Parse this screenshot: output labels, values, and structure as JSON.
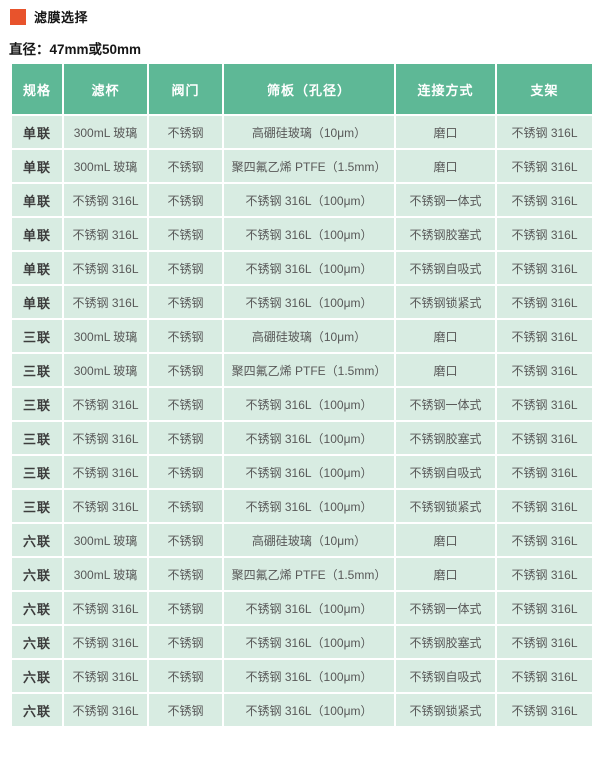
{
  "doc": {
    "title": "滤膜选择",
    "subtitle": "直径：47mm或50mm"
  },
  "colors": {
    "accent": "#e8532c",
    "header_bg": "#5eb896",
    "cell_bg": "#d8ece2"
  },
  "table": {
    "headers": [
      "规格",
      "滤杯",
      "阀门",
      "筛板（孔径）",
      "连接方式",
      "支架"
    ],
    "rows": [
      [
        "单联",
        "300mL 玻璃",
        "不锈钢",
        "高硼硅玻璃（10μm）",
        "磨口",
        "不锈钢 316L"
      ],
      [
        "单联",
        "300mL 玻璃",
        "不锈钢",
        "聚四氟乙烯 PTFE（1.5mm）",
        "磨口",
        "不锈钢 316L"
      ],
      [
        "单联",
        "不锈钢 316L",
        "不锈钢",
        "不锈钢 316L（100μm）",
        "不锈钢一体式",
        "不锈钢 316L"
      ],
      [
        "单联",
        "不锈钢 316L",
        "不锈钢",
        "不锈钢 316L（100μm）",
        "不锈钢胶塞式",
        "不锈钢 316L"
      ],
      [
        "单联",
        "不锈钢 316L",
        "不锈钢",
        "不锈钢 316L（100μm）",
        "不锈钢自吸式",
        "不锈钢 316L"
      ],
      [
        "单联",
        "不锈钢 316L",
        "不锈钢",
        "不锈钢 316L（100μm）",
        "不锈钢锁紧式",
        "不锈钢 316L"
      ],
      [
        "三联",
        "300mL 玻璃",
        "不锈钢",
        "高硼硅玻璃（10μm）",
        "磨口",
        "不锈钢 316L"
      ],
      [
        "三联",
        "300mL 玻璃",
        "不锈钢",
        "聚四氟乙烯 PTFE（1.5mm）",
        "磨口",
        "不锈钢 316L"
      ],
      [
        "三联",
        "不锈钢 316L",
        "不锈钢",
        "不锈钢 316L（100μm）",
        "不锈钢一体式",
        "不锈钢 316L"
      ],
      [
        "三联",
        "不锈钢 316L",
        "不锈钢",
        "不锈钢 316L（100μm）",
        "不锈钢胶塞式",
        "不锈钢 316L"
      ],
      [
        "三联",
        "不锈钢 316L",
        "不锈钢",
        "不锈钢 316L（100μm）",
        "不锈钢自吸式",
        "不锈钢 316L"
      ],
      [
        "三联",
        "不锈钢 316L",
        "不锈钢",
        "不锈钢 316L（100μm）",
        "不锈钢锁紧式",
        "不锈钢 316L"
      ],
      [
        "六联",
        "300mL 玻璃",
        "不锈钢",
        "高硼硅玻璃（10μm）",
        "磨口",
        "不锈钢 316L"
      ],
      [
        "六联",
        "300mL 玻璃",
        "不锈钢",
        "聚四氟乙烯 PTFE（1.5mm）",
        "磨口",
        "不锈钢 316L"
      ],
      [
        "六联",
        "不锈钢 316L",
        "不锈钢",
        "不锈钢 316L（100μm）",
        "不锈钢一体式",
        "不锈钢 316L"
      ],
      [
        "六联",
        "不锈钢 316L",
        "不锈钢",
        "不锈钢 316L（100μm）",
        "不锈钢胶塞式",
        "不锈钢 316L"
      ],
      [
        "六联",
        "不锈钢 316L",
        "不锈钢",
        "不锈钢 316L（100μm）",
        "不锈钢自吸式",
        "不锈钢 316L"
      ],
      [
        "六联",
        "不锈钢 316L",
        "不锈钢",
        "不锈钢 316L（100μm）",
        "不锈钢锁紧式",
        "不锈钢 316L"
      ]
    ]
  }
}
